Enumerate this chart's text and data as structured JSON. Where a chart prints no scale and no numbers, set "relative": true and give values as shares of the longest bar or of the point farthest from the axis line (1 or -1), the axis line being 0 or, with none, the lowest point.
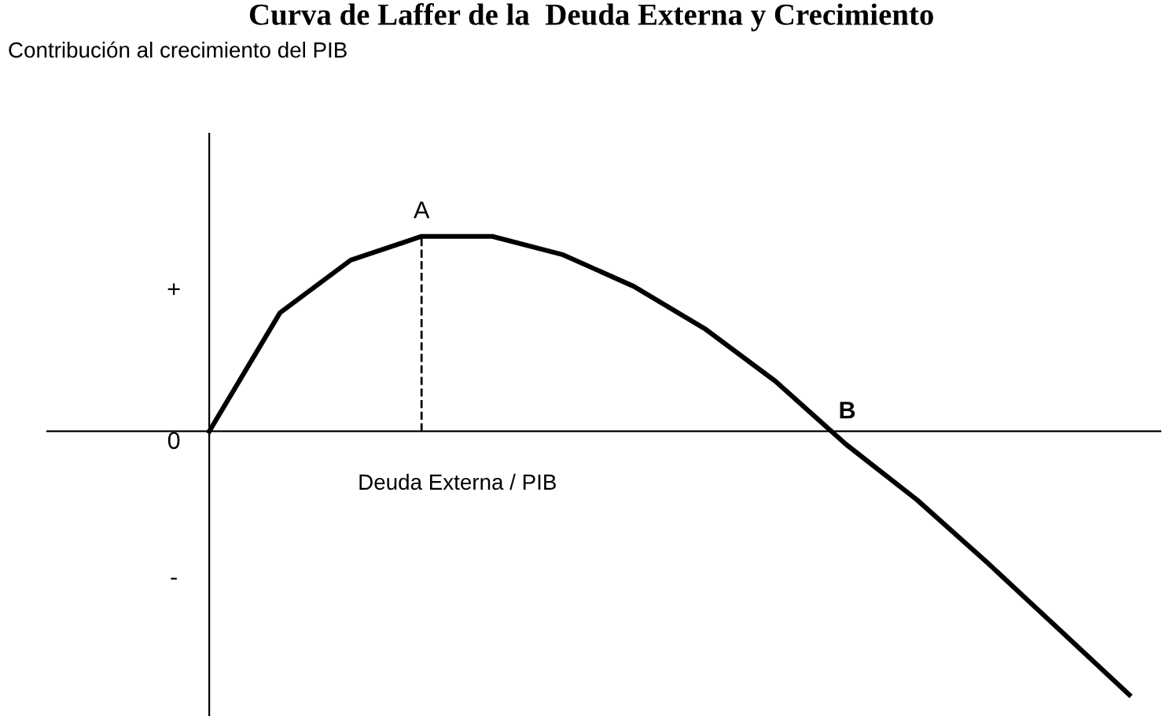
{
  "chart_data": {
    "type": "line",
    "title": "Curva de Laffer de la  Deuda Externa y Crecimiento",
    "xlabel": "Deuda Externa / PIB",
    "relative": true,
    "categories": [
      null,
      null,
      null,
      null,
      null,
      null,
      null,
      null,
      null,
      null,
      null,
      null,
      null,
      null
    ],
    "series": [
      {
        "color": "#000000",
        "values": [
          0,
          0.45,
          0.65,
          0.74,
          0.74,
          0.67,
          0.55,
          0.39,
          0.19,
          -0.05,
          -0.26,
          -0.5,
          -0.75,
          -1
        ]
      }
    ],
    "annotations": [
      "A",
      "B",
      "+",
      "0",
      "-",
      "Contribución al crecimiento del PIB"
    ],
    "marker": "none",
    "line_style": "solid",
    "grid": false,
    "legend": false
  }
}
